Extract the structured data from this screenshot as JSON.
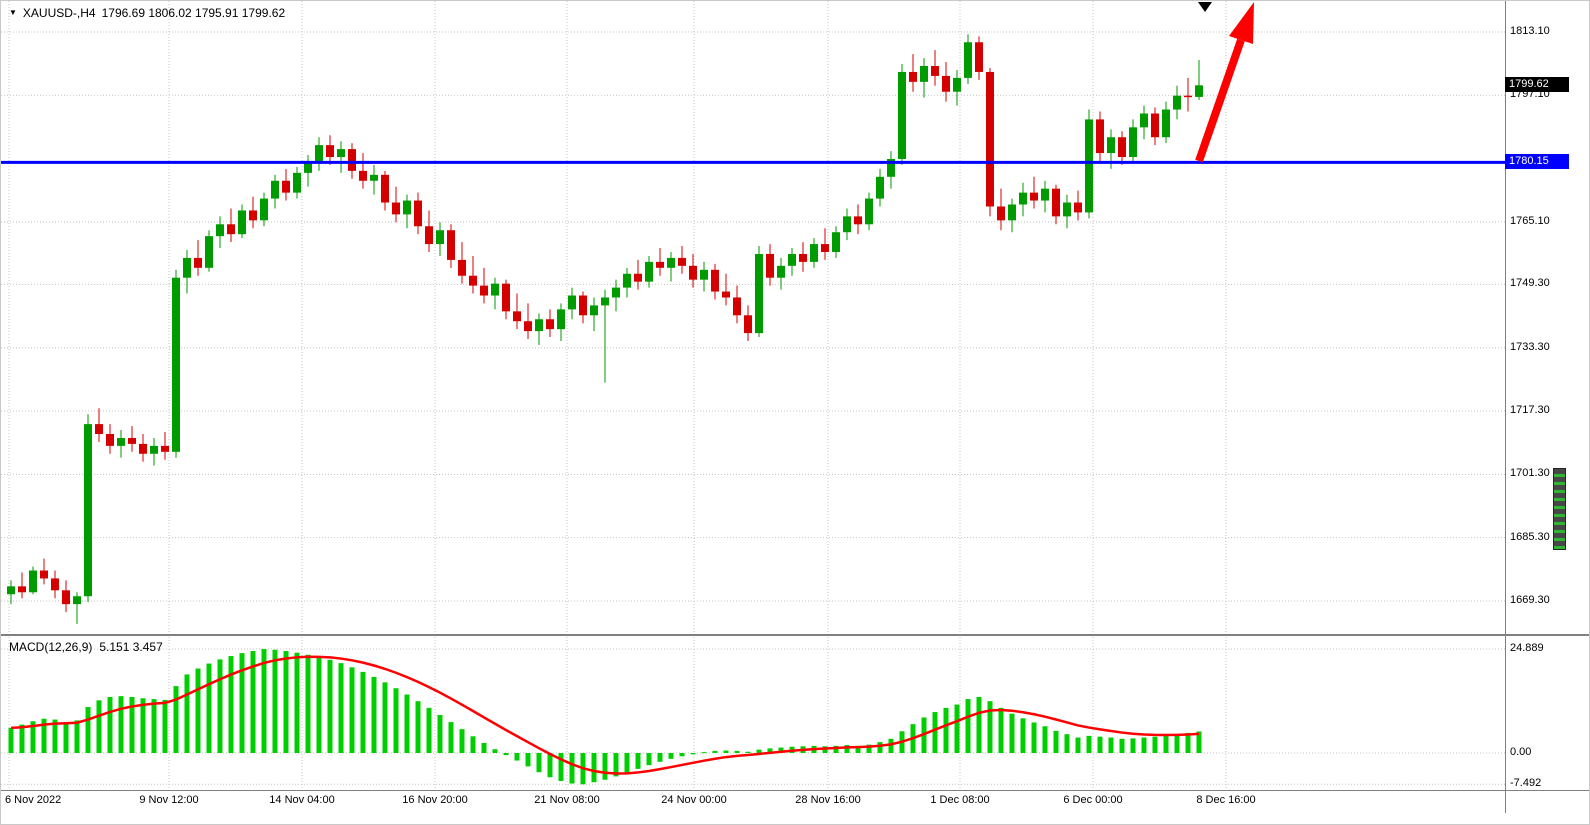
{
  "window": {
    "symbol": "XAUUSD-,H4",
    "ohlc": "1796.69 1806.02 1795.91 1799.62",
    "dropdown_glyph": "▼"
  },
  "colors": {
    "bull": "#009b00",
    "bear": "#d40000",
    "hist": "#00ce00",
    "signal": "#ff0000",
    "hline": "#0000fe",
    "arrow": "#ff0000",
    "grid": "#c4c4c4",
    "tag_current_bg": "#000000",
    "tag_hline_bg": "#0000fe"
  },
  "price_axis": {
    "labels": [
      "1813.10",
      "1797.10",
      "1765.10",
      "1749.30",
      "1733.30",
      "1717.30",
      "1701.30",
      "1685.30",
      "1669.30"
    ],
    "current_tag": "1799.62",
    "hline_tag": "1780.15"
  },
  "time_axis": {
    "labels": [
      "6 Nov 2022",
      "9 Nov 12:00",
      "14 Nov 04:00",
      "16 Nov 20:00",
      "21 Nov 08:00",
      "24 Nov 00:00",
      "28 Nov 16:00",
      "1 Dec 08:00",
      "6 Dec 00:00",
      "8 Dec 16:00"
    ]
  },
  "macd_panel": {
    "label_name": "MACD(12,26,9)",
    "label_values": "5.151 3.457",
    "axis_labels": [
      "24.889",
      "0.00",
      "-7.492"
    ]
  },
  "chart_data": [
    {
      "type": "candlestick",
      "symbol": "XAUUSD-",
      "timeframe": "H4",
      "current_bar": {
        "open": 1796.69,
        "high": 1806.02,
        "low": 1795.91,
        "close": 1799.62
      },
      "y_axis_ticks": [
        1813.1,
        1797.1,
        1765.1,
        1749.3,
        1733.3,
        1717.3,
        1701.3,
        1685.3,
        1669.3
      ],
      "ylim": [
        1661.0,
        1820.9
      ],
      "x_axis_labels": [
        "6 Nov 2022",
        "9 Nov 12:00",
        "14 Nov 04:00",
        "16 Nov 20:00",
        "21 Nov 08:00",
        "24 Nov 00:00",
        "28 Nov 16:00",
        "1 Dec 08:00",
        "6 Dec 00:00",
        "8 Dec 16:00"
      ],
      "horizontal_line": {
        "price": 1780.15,
        "color": "#0000fe",
        "label": "1780.15"
      },
      "trend_arrow": {
        "direction": "up",
        "color": "#ff0000"
      },
      "grid": "dotted",
      "candles": [
        [
          1671.0,
          1674.5,
          1668.5,
          1673.0
        ],
        [
          1673.0,
          1676.5,
          1670.0,
          1671.5
        ],
        [
          1671.5,
          1678.0,
          1671.0,
          1677.0
        ],
        [
          1677.0,
          1680.0,
          1673.5,
          1675.0
        ],
        [
          1675.0,
          1677.0,
          1670.0,
          1672.0
        ],
        [
          1672.0,
          1674.5,
          1666.5,
          1668.5
        ],
        [
          1668.5,
          1671.5,
          1663.5,
          1670.5
        ],
        [
          1670.5,
          1716.5,
          1669.0,
          1714.0
        ],
        [
          1714.0,
          1718.0,
          1709.5,
          1711.5
        ],
        [
          1711.5,
          1714.0,
          1706.5,
          1708.5
        ],
        [
          1708.5,
          1712.5,
          1705.5,
          1710.5
        ],
        [
          1710.5,
          1713.5,
          1707.0,
          1709.0
        ],
        [
          1709.0,
          1711.5,
          1704.5,
          1706.5
        ],
        [
          1706.5,
          1710.5,
          1703.5,
          1708.5
        ],
        [
          1708.5,
          1712.0,
          1705.0,
          1707.0
        ],
        [
          1707.0,
          1753.0,
          1705.5,
          1751.0
        ],
        [
          1751.0,
          1758.0,
          1747.0,
          1756.0
        ],
        [
          1756.0,
          1760.5,
          1751.5,
          1753.5
        ],
        [
          1753.5,
          1763.0,
          1752.5,
          1761.5
        ],
        [
          1761.5,
          1766.5,
          1758.5,
          1764.5
        ],
        [
          1764.5,
          1768.5,
          1760.0,
          1762.0
        ],
        [
          1762.0,
          1769.5,
          1761.0,
          1768.0
        ],
        [
          1768.0,
          1771.5,
          1763.5,
          1765.5
        ],
        [
          1765.5,
          1772.5,
          1764.0,
          1771.0
        ],
        [
          1771.0,
          1777.0,
          1768.5,
          1775.5
        ],
        [
          1775.5,
          1778.5,
          1770.5,
          1772.5
        ],
        [
          1772.5,
          1779.0,
          1771.0,
          1777.5
        ],
        [
          1777.5,
          1782.0,
          1774.0,
          1780.5
        ],
        [
          1780.5,
          1786.5,
          1778.0,
          1784.5
        ],
        [
          1784.5,
          1787.0,
          1779.5,
          1781.5
        ],
        [
          1781.5,
          1785.5,
          1777.5,
          1783.5
        ],
        [
          1783.5,
          1785.0,
          1776.0,
          1778.0
        ],
        [
          1778.0,
          1782.5,
          1773.5,
          1775.5
        ],
        [
          1775.5,
          1779.5,
          1772.0,
          1777.0
        ],
        [
          1777.0,
          1778.0,
          1768.0,
          1770.0
        ],
        [
          1770.0,
          1774.0,
          1765.0,
          1767.0
        ],
        [
          1767.0,
          1772.0,
          1763.5,
          1770.5
        ],
        [
          1770.5,
          1772.5,
          1762.0,
          1764.0
        ],
        [
          1764.0,
          1768.0,
          1757.5,
          1759.5
        ],
        [
          1759.5,
          1765.0,
          1756.5,
          1763.0
        ],
        [
          1763.0,
          1764.5,
          1753.5,
          1755.5
        ],
        [
          1755.5,
          1760.0,
          1749.5,
          1751.5
        ],
        [
          1751.5,
          1756.5,
          1747.0,
          1749.0
        ],
        [
          1749.0,
          1753.5,
          1744.5,
          1746.5
        ],
        [
          1746.5,
          1751.0,
          1743.0,
          1749.5
        ],
        [
          1749.5,
          1750.5,
          1740.5,
          1742.5
        ],
        [
          1742.5,
          1747.0,
          1738.0,
          1740.0
        ],
        [
          1740.0,
          1744.5,
          1735.5,
          1737.5
        ],
        [
          1737.5,
          1742.0,
          1734.0,
          1740.5
        ],
        [
          1740.5,
          1743.0,
          1736.0,
          1738.0
        ],
        [
          1738.0,
          1744.5,
          1735.0,
          1743.0
        ],
        [
          1743.0,
          1748.5,
          1740.5,
          1746.5
        ],
        [
          1746.5,
          1747.5,
          1739.5,
          1741.5
        ],
        [
          1741.5,
          1746.0,
          1737.5,
          1744.0
        ],
        [
          1744.0,
          1748.0,
          1724.5,
          1746.0
        ],
        [
          1746.0,
          1750.5,
          1742.5,
          1748.5
        ],
        [
          1748.5,
          1753.5,
          1746.0,
          1752.0
        ],
        [
          1752.0,
          1755.5,
          1748.0,
          1750.0
        ],
        [
          1750.0,
          1756.5,
          1748.5,
          1755.0
        ],
        [
          1755.0,
          1758.5,
          1751.5,
          1753.5
        ],
        [
          1753.5,
          1757.5,
          1750.0,
          1756.0
        ],
        [
          1756.0,
          1759.0,
          1752.0,
          1754.0
        ],
        [
          1754.0,
          1757.0,
          1748.5,
          1750.5
        ],
        [
          1750.5,
          1755.0,
          1747.5,
          1753.0
        ],
        [
          1753.0,
          1754.5,
          1745.5,
          1747.5
        ],
        [
          1747.5,
          1752.0,
          1744.0,
          1746.0
        ],
        [
          1746.0,
          1749.0,
          1739.5,
          1741.5
        ],
        [
          1741.5,
          1744.0,
          1735.0,
          1737.0
        ],
        [
          1737.0,
          1759.0,
          1736.0,
          1757.0
        ],
        [
          1757.0,
          1759.5,
          1749.0,
          1751.0
        ],
        [
          1751.0,
          1756.0,
          1748.0,
          1754.0
        ],
        [
          1754.0,
          1758.5,
          1751.5,
          1757.0
        ],
        [
          1757.0,
          1760.0,
          1752.5,
          1755.0
        ],
        [
          1755.0,
          1761.0,
          1753.5,
          1759.5
        ],
        [
          1759.5,
          1763.5,
          1755.5,
          1757.5
        ],
        [
          1757.5,
          1764.0,
          1756.0,
          1762.5
        ],
        [
          1762.5,
          1768.5,
          1760.5,
          1766.5
        ],
        [
          1766.5,
          1769.5,
          1762.0,
          1764.5
        ],
        [
          1764.5,
          1772.5,
          1763.0,
          1771.0
        ],
        [
          1771.0,
          1778.5,
          1769.0,
          1776.5
        ],
        [
          1776.5,
          1783.0,
          1773.5,
          1781.0
        ],
        [
          1781.0,
          1805.0,
          1779.5,
          1803.0
        ],
        [
          1803.0,
          1807.5,
          1798.0,
          1800.5
        ],
        [
          1800.5,
          1806.5,
          1796.5,
          1804.5
        ],
        [
          1804.5,
          1808.5,
          1799.5,
          1802.0
        ],
        [
          1802.0,
          1805.5,
          1795.5,
          1798.0
        ],
        [
          1798.0,
          1803.5,
          1794.5,
          1801.5
        ],
        [
          1801.5,
          1812.5,
          1800.0,
          1810.5
        ],
        [
          1810.5,
          1812.0,
          1801.0,
          1803.0
        ],
        [
          1803.0,
          1804.0,
          1766.5,
          1769.0
        ],
        [
          1769.0,
          1773.5,
          1763.0,
          1765.5
        ],
        [
          1765.5,
          1771.0,
          1762.5,
          1769.5
        ],
        [
          1769.5,
          1775.0,
          1766.5,
          1772.5
        ],
        [
          1772.5,
          1776.5,
          1768.5,
          1770.5
        ],
        [
          1770.5,
          1775.5,
          1767.5,
          1773.5
        ],
        [
          1773.5,
          1774.5,
          1764.5,
          1766.5
        ],
        [
          1766.5,
          1772.0,
          1763.5,
          1770.0
        ],
        [
          1770.0,
          1773.0,
          1765.5,
          1767.5
        ],
        [
          1767.5,
          1793.5,
          1766.0,
          1791.0
        ],
        [
          1791.0,
          1793.0,
          1780.5,
          1782.5
        ],
        [
          1782.5,
          1788.5,
          1778.5,
          1786.5
        ],
        [
          1786.5,
          1788.0,
          1779.5,
          1781.5
        ],
        [
          1781.5,
          1791.0,
          1780.0,
          1789.0
        ],
        [
          1789.0,
          1794.5,
          1786.0,
          1792.5
        ],
        [
          1792.5,
          1794.0,
          1784.5,
          1786.5
        ],
        [
          1786.5,
          1795.5,
          1785.0,
          1793.5
        ],
        [
          1793.5,
          1799.5,
          1791.0,
          1797.0
        ],
        [
          1797.0,
          1801.5,
          1793.0,
          1796.7
        ],
        [
          1796.69,
          1806.02,
          1795.91,
          1799.62
        ]
      ]
    },
    {
      "type": "bar",
      "name": "MACD(12,26,9)",
      "params": {
        "fast": 12,
        "slow": 26,
        "signal": 9
      },
      "macd_current": 5.151,
      "signal_current": 3.457,
      "y_axis_ticks": [
        24.889,
        0.0,
        -7.492
      ],
      "ylim": [
        -10.5,
        27.5
      ],
      "signal_note": "red line = EMA(9) of histogram values",
      "histogram": [
        6.0,
        6.8,
        7.6,
        8.2,
        8.0,
        7.4,
        7.8,
        11.0,
        12.6,
        13.4,
        13.6,
        13.4,
        13.1,
        12.9,
        12.7,
        16.0,
        18.8,
        20.2,
        21.4,
        22.4,
        23.2,
        23.9,
        24.4,
        24.889,
        24.7,
        24.4,
        24.0,
        23.5,
        23.0,
        22.3,
        21.5,
        20.5,
        19.4,
        18.2,
        16.9,
        15.5,
        14.0,
        12.4,
        10.8,
        9.1,
        7.4,
        5.7,
        4.0,
        2.4,
        0.9,
        -0.5,
        -1.8,
        -3.2,
        -4.6,
        -5.8,
        -6.7,
        -7.3,
        -7.492,
        -7.0,
        -6.4,
        -5.6,
        -4.7,
        -3.8,
        -2.9,
        -2.1,
        -1.4,
        -0.8,
        -0.3,
        0.2,
        0.5,
        0.6,
        0.5,
        0.3,
        0.8,
        1.1,
        1.3,
        1.5,
        1.6,
        1.7,
        1.6,
        1.7,
        1.9,
        1.7,
        2.0,
        2.6,
        3.4,
        5.2,
        6.9,
        8.5,
        9.8,
        10.8,
        11.6,
        12.9,
        13.4,
        12.4,
        10.8,
        9.4,
        8.3,
        7.3,
        6.4,
        5.3,
        4.5,
        3.7,
        4.1,
        3.9,
        3.7,
        3.4,
        3.5,
        3.7,
        3.9,
        4.2,
        4.5,
        4.8,
        5.151
      ]
    }
  ]
}
